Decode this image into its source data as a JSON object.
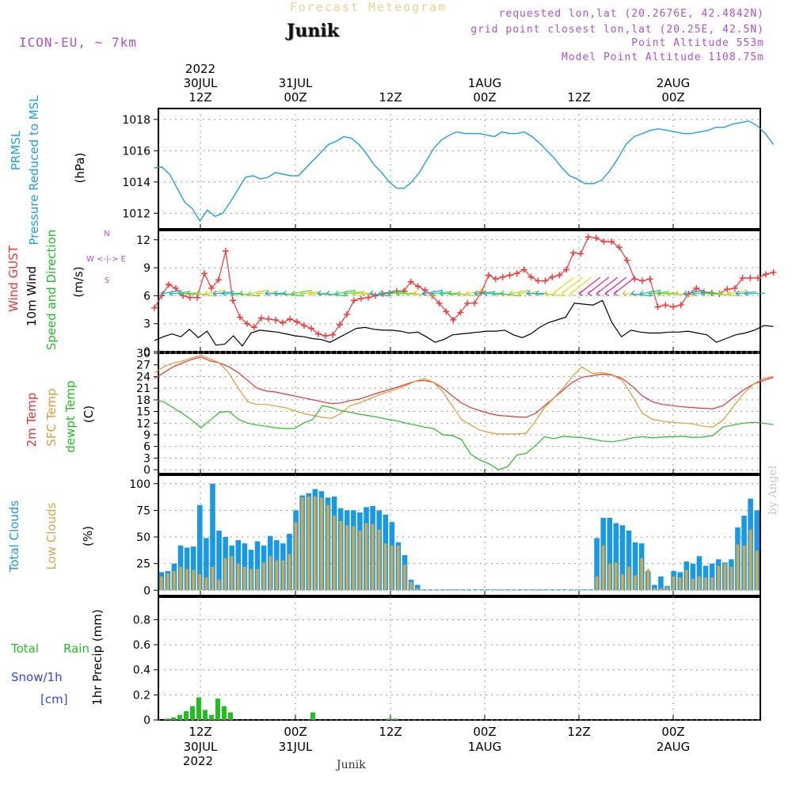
{
  "header": {
    "supertitle": "Forecast Meteogram",
    "location": "Junik",
    "model": "ICON-EU, ~ 7km",
    "requested": "requested lon,lat (20.2676E, 42.4842N)",
    "grid_point": "grid point closest lon,lat (20.25E, 42.5N)",
    "point_altitude": "Point Altitude 553m",
    "model_altitude": "Model Point Altitude 1108.75m"
  },
  "footer": {
    "location": "Junik",
    "watermark": "by Angel"
  },
  "colors": {
    "pressure": "#1aa0e8",
    "gust": "#ff3030",
    "wind": "#000000",
    "wind_dir": "#20c020",
    "t2m": "#ee3030",
    "sfc": "#e09a30",
    "dewpt": "#20c020",
    "total_clouds": "#1899e8",
    "low_clouds": "#d6a84a",
    "rain": "#20c020",
    "snow": "#3344ee",
    "purple": "#b050d0"
  },
  "chart_data": [
    {
      "type": "line",
      "panel": "pressure",
      "ylabel": [
        "PRMSL",
        "Pressure Reduced to MSL",
        "(hPa)"
      ],
      "ylim": [
        1011,
        1018.7
      ],
      "yticks": [
        1012,
        1014,
        1016,
        1018
      ],
      "x_start": 0,
      "x_step": 1,
      "series": [
        {
          "name": "PRMSL",
          "color": "#1aa0e8",
          "values": [
            1014.9,
            1014.95,
            1014.5,
            1013.6,
            1012.7,
            1012.3,
            1011.5,
            1012.2,
            1011.8,
            1012.0,
            1012.7,
            1013.5,
            1014.3,
            1014.4,
            1014.2,
            1014.3,
            1014.6,
            1014.5,
            1014.4,
            1014.4,
            1014.9,
            1015.4,
            1015.9,
            1016.4,
            1016.6,
            1016.9,
            1016.8,
            1016.4,
            1015.8,
            1015.1,
            1014.6,
            1014.0,
            1013.6,
            1013.6,
            1014.0,
            1014.6,
            1015.4,
            1016.2,
            1016.7,
            1017.0,
            1017.2,
            1017.1,
            1017.1,
            1017.1,
            1017.0,
            1016.9,
            1017.2,
            1017.1,
            1017.1,
            1017.2,
            1016.9,
            1016.5,
            1016.0,
            1015.5,
            1014.9,
            1014.4,
            1014.2,
            1013.9,
            1013.9,
            1014.1,
            1014.7,
            1015.5,
            1016.4,
            1016.9,
            1017.1,
            1017.3,
            1017.4,
            1017.3,
            1017.2,
            1017.1,
            1017.1,
            1017.2,
            1017.3,
            1017.5,
            1017.5,
            1017.7,
            1017.8,
            1017.9,
            1017.6,
            1017.1,
            1016.4
          ]
        }
      ]
    },
    {
      "type": "line",
      "panel": "wind",
      "ylabel": [
        "Wind GUST",
        "10m Wind",
        "Speed and Direction",
        "(m/s)"
      ],
      "compass": [
        "N",
        "W <-|-> E",
        "S"
      ],
      "ylim": [
        0,
        13
      ],
      "yticks": [
        0,
        3,
        6,
        9,
        12
      ],
      "x_start": 0,
      "x_step": 1,
      "series": [
        {
          "name": "Wind GUST",
          "color": "#ff3030",
          "values": [
            4.7,
            6.0,
            7.2,
            6.8,
            6.0,
            5.8,
            5.8,
            8.4,
            6.8,
            7.7,
            10.8,
            5.5,
            3.7,
            3.0,
            2.6,
            3.6,
            3.5,
            3.4,
            3.1,
            3.5,
            3.2,
            2.8,
            2.5,
            1.9,
            1.7,
            1.8,
            2.9,
            4.0,
            5.5,
            5.7,
            5.8,
            6.0,
            6.2,
            6.3,
            6.5,
            6.5,
            7.5,
            7.0,
            6.6,
            6.0,
            5.2,
            4.3,
            3.4,
            4.2,
            5.2,
            5.2,
            6.4,
            8.2,
            7.8,
            8.0,
            8.2,
            8.4,
            8.8,
            8.0,
            7.6,
            7.6,
            8.0,
            8.2,
            8.8,
            10.6,
            10.5,
            12.3,
            12.2,
            11.8,
            11.8,
            11.2,
            9.8,
            7.8,
            7.6,
            7.8,
            4.8,
            5.0,
            4.8,
            5.0,
            6.2,
            6.8,
            6.4,
            6.3,
            6.2,
            6.7,
            6.8,
            7.9,
            7.9,
            7.9,
            8.3,
            8.5
          ]
        },
        {
          "name": "10m Wind",
          "color": "#000000",
          "values": [
            1.2,
            1.6,
            1.9,
            1.6,
            2.4,
            1.5,
            2.2,
            0.7,
            0.8,
            1.7,
            0.6,
            2.0,
            2.3,
            2.2,
            2.1,
            1.9,
            1.7,
            1.6,
            1.4,
            1.3,
            1.0,
            1.5,
            2.0,
            2.5,
            2.6,
            2.4,
            2.3,
            2.3,
            2.2,
            2.0,
            2.1,
            1.6,
            1.0,
            1.3,
            1.8,
            1.9,
            2.0,
            2.1,
            2.2,
            2.2,
            2.3,
            1.8,
            1.5,
            1.9,
            2.6,
            3.1,
            3.4,
            3.7,
            5.2,
            5.1,
            5.0,
            5.5,
            3.1,
            1.6,
            2.3,
            2.1,
            2.0,
            2.0,
            2.1,
            2.1,
            2.2,
            2.0,
            1.8,
            1.0,
            1.4,
            1.8,
            2.0,
            2.3,
            2.8,
            2.7
          ]
        }
      ]
    },
    {
      "type": "line",
      "panel": "temperature",
      "ylabel": [
        "2m Temp",
        "SFC Temp",
        "dewpt Temp",
        "(C)"
      ],
      "ylim": [
        -1,
        30
      ],
      "yticks": [
        0,
        3,
        6,
        9,
        12,
        15,
        18,
        21,
        24,
        27,
        30
      ],
      "x_start": 0,
      "x_step": 1,
      "series": [
        {
          "name": "2m Temp",
          "color": "#ee3030",
          "values": [
            23.5,
            25.0,
            26.5,
            27.5,
            28.4,
            29.0,
            28.0,
            27.5,
            26.5,
            25.0,
            23.0,
            21.0,
            20.3,
            20.0,
            19.5,
            19.0,
            18.5,
            18.0,
            17.5,
            17.0,
            17.2,
            17.8,
            18.2,
            19.0,
            19.8,
            20.5,
            21.2,
            22.0,
            22.8,
            23.0,
            22.5,
            21.0,
            19.0,
            17.2,
            16.0,
            15.2,
            14.5,
            14.0,
            13.8,
            13.6,
            13.5,
            14.5,
            16.5,
            18.5,
            20.5,
            22.5,
            23.8,
            24.2,
            24.6,
            24.4,
            23.5,
            21.5,
            19.0,
            17.5,
            16.8,
            16.5,
            16.2,
            16.0,
            15.8,
            15.7,
            16.5,
            18.5,
            20.5,
            22.0,
            23.0,
            23.8
          ]
        },
        {
          "name": "SFC Temp",
          "color": "#e09a30",
          "values": [
            25.0,
            26.5,
            27.5,
            28.0,
            28.8,
            29.5,
            28.5,
            27.5,
            24.8,
            21.0,
            17.5,
            16.8,
            16.8,
            16.4,
            16.0,
            15.2,
            14.5,
            14.0,
            13.5,
            13.2,
            14.5,
            16.5,
            17.2,
            18.2,
            19.2,
            20.0,
            20.8,
            21.7,
            22.8,
            23.5,
            22.5,
            20.0,
            16.5,
            13.0,
            11.5,
            10.2,
            9.6,
            9.2,
            9.2,
            9.2,
            9.4,
            12.5,
            16.0,
            18.5,
            21.0,
            24.0,
            26.5,
            24.8,
            25.0,
            24.5,
            23.0,
            19.0,
            14.5,
            13.0,
            12.5,
            12.2,
            12.0,
            11.8,
            11.2,
            11.0,
            12.8,
            16.2,
            19.5,
            22.0,
            23.5,
            24.0
          ]
        },
        {
          "name": "dewpt Temp",
          "color": "#20c020",
          "values": [
            18.0,
            17.5,
            16.0,
            14.5,
            12.8,
            10.8,
            12.8,
            14.8,
            15.0,
            13.0,
            12.0,
            11.5,
            11.2,
            10.8,
            10.6,
            10.6,
            12.0,
            13.0,
            16.5,
            16.0,
            15.2,
            14.8,
            14.3,
            13.9,
            13.5,
            13.0,
            12.6,
            12.0,
            11.5,
            11.0,
            10.6,
            9.0,
            8.8,
            7.8,
            4.0,
            2.5,
            1.5,
            0.0,
            0.8,
            3.8,
            4.2,
            6.2,
            8.5,
            8.0,
            8.6,
            8.4,
            8.3,
            7.9,
            7.4,
            7.2,
            7.6,
            8.2,
            8.5,
            8.2,
            8.4,
            8.5,
            8.6,
            8.3,
            8.4,
            8.8,
            11.0,
            11.5,
            12.0,
            12.2,
            12.0,
            11.6
          ]
        }
      ]
    },
    {
      "type": "bar",
      "panel": "clouds",
      "ylabel": [
        "Total Clouds",
        "Low Clouds",
        "(%)"
      ],
      "ylim": [
        -5,
        108
      ],
      "yticks": [
        0,
        25,
        50,
        75,
        100
      ],
      "x_start": 0,
      "x_step": 1,
      "series": [
        {
          "name": "Total Clouds",
          "color": "#1899e8",
          "values": [
            17,
            18,
            25,
            42,
            40,
            41,
            80,
            49,
            100,
            56,
            50,
            42,
            47,
            44,
            38,
            46,
            42,
            51,
            47,
            44,
            53,
            75,
            89,
            91,
            95,
            93,
            87,
            88,
            77,
            75,
            75,
            73,
            78,
            79,
            75,
            71,
            64,
            45,
            33,
            10,
            5,
            0,
            0,
            0,
            0,
            0,
            0,
            0,
            0,
            0,
            0,
            0,
            0,
            0,
            0,
            0,
            0,
            0,
            0,
            0,
            0,
            0,
            0,
            0,
            0,
            0,
            0,
            0,
            49,
            68,
            68,
            63,
            61,
            56,
            45,
            44,
            18,
            5,
            13,
            4,
            18,
            17,
            27,
            25,
            32,
            23,
            25,
            29,
            26,
            29,
            59,
            70,
            86,
            75
          ]
        },
        {
          "name": "Low Clouds",
          "color": "#d6a84a",
          "values": [
            13,
            16,
            18,
            22,
            20,
            19,
            15,
            12,
            22,
            10,
            30,
            32,
            25,
            22,
            20,
            20,
            26,
            32,
            28,
            28,
            34,
            64,
            87,
            88,
            88,
            87,
            80,
            70,
            65,
            61,
            60,
            56,
            63,
            62,
            57,
            44,
            42,
            42,
            24,
            8,
            2,
            0,
            0,
            0,
            0,
            0,
            0,
            0,
            0,
            0,
            0,
            0,
            0,
            0,
            0,
            0,
            0,
            0,
            0,
            0,
            0,
            0,
            0,
            0,
            0,
            0,
            0,
            0,
            13,
            42,
            25,
            26,
            15,
            22,
            14,
            30,
            20,
            2,
            2,
            3,
            13,
            12,
            19,
            11,
            13,
            12,
            12,
            23,
            25,
            22,
            43,
            42,
            57,
            37
          ]
        }
      ]
    },
    {
      "type": "bar",
      "panel": "precipitation",
      "ylabel": [
        "1hr Precip (mm)"
      ],
      "legend": [
        "Total",
        "Rain",
        "Snow/1h",
        "[cm]"
      ],
      "ylim": [
        0,
        0.98
      ],
      "yticks": [
        "0",
        "0.2",
        "0.4",
        "0.6",
        "0.8"
      ],
      "x_start": 0,
      "x_step": 1,
      "series": [
        {
          "name": "Total Rain",
          "color": "#20c020",
          "values": [
            0.01,
            0.02,
            0.04,
            0.07,
            0.11,
            0.18,
            0.08,
            0.04,
            0.17,
            0.11,
            0.06,
            0,
            0,
            0,
            0,
            0,
            0,
            0,
            0,
            0,
            0,
            0,
            0,
            0.06,
            0,
            0,
            0,
            0,
            0,
            0,
            0,
            0,
            0,
            0,
            0,
            0.01,
            0.01,
            0,
            0,
            0,
            0,
            0,
            0,
            0,
            0,
            0,
            0,
            0,
            0,
            0,
            0,
            0,
            0,
            0,
            0,
            0,
            0,
            0,
            0,
            0,
            0,
            0,
            0,
            0,
            0,
            0,
            0,
            0,
            0,
            0,
            0,
            0,
            0,
            0,
            0,
            0,
            0,
            0,
            0,
            0,
            0,
            0,
            0,
            0,
            0,
            0,
            0,
            0,
            0,
            0,
            0,
            0,
            0,
            0,
            0
          ]
        }
      ]
    }
  ],
  "time_axis": {
    "ticks": [
      "12Z",
      "00Z",
      "12Z",
      "00Z",
      "12Z",
      "00Z"
    ],
    "top_dates": [
      "30JUL",
      "31JUL",
      "1AUG",
      "2AUG"
    ],
    "year": "2022",
    "bottom_dates": [
      "30JUL",
      "31JUL",
      "1AUG",
      "2AUG"
    ]
  }
}
